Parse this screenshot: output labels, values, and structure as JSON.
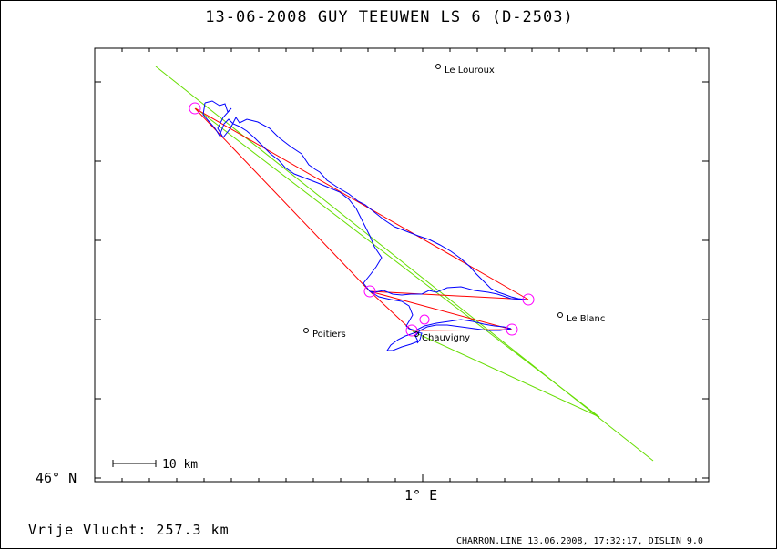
{
  "title": "13-06-2008    GUY TEEUWEN    LS 6 (D-2503)",
  "axes": {
    "lat_label": "46° N",
    "lon_label": "1° E"
  },
  "scale_bar": {
    "label": "10 km"
  },
  "summary": "Vrije Vlucht:  257.3 km",
  "footer": "CHARRON.LINE 13.06.2008, 17:32:17, DISLIN 9.0",
  "towns": [
    {
      "name": "Le Louroux"
    },
    {
      "name": "Le Blanc"
    },
    {
      "name": "Poitiers"
    },
    {
      "name": "Chauvigny"
    }
  ],
  "colors": {
    "track": "#0000ff",
    "task": "#ff0000",
    "sector": "#66dd00",
    "turnpoint": "#ff00ff",
    "frame": "#000000"
  }
}
